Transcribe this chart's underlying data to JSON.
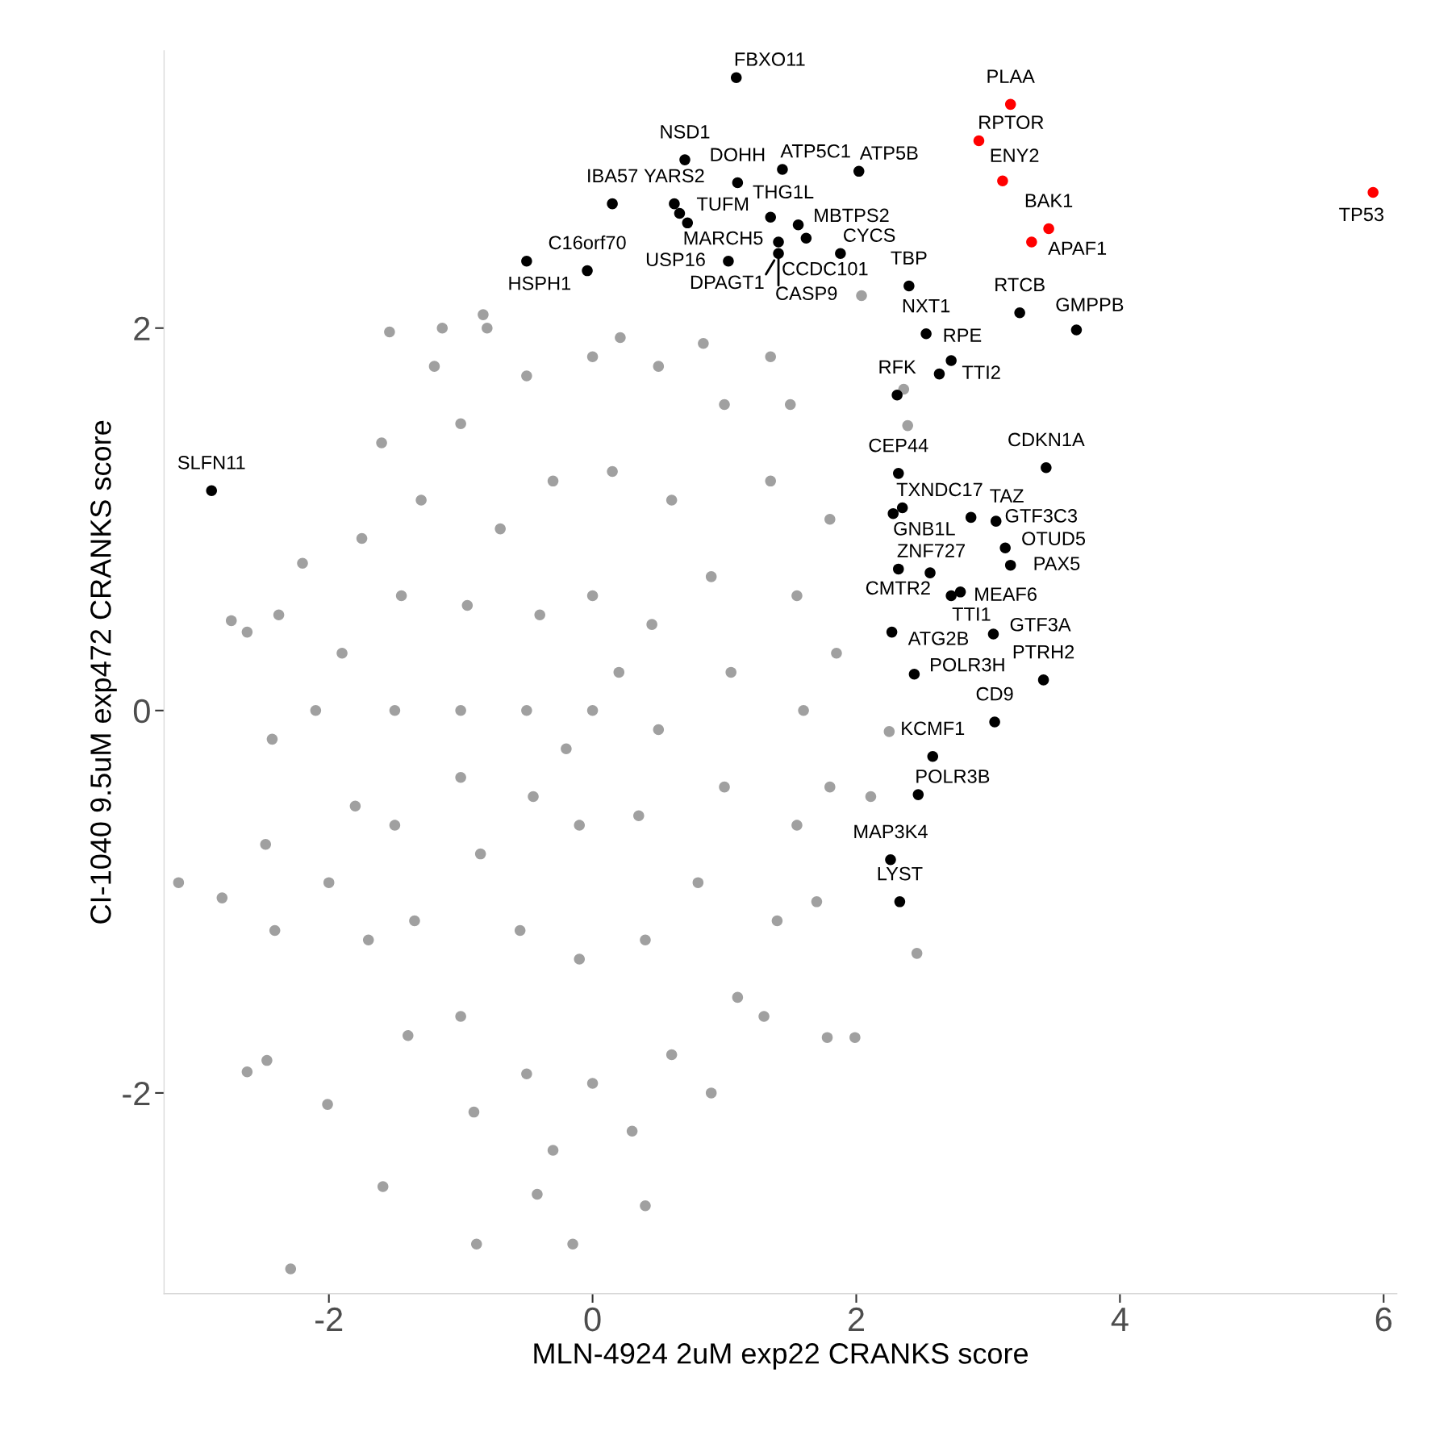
{
  "chart_data": {
    "type": "scatter",
    "xlabel": "MLN-4924 2uM exp22 CRANKS score",
    "ylabel": "CI-1040 9.5uM exp472 CRANKS score",
    "xlim": [
      -3.25,
      6.1
    ],
    "ylim": [
      -3.05,
      3.45
    ],
    "xticks": [
      -2,
      0,
      2,
      4,
      6
    ],
    "yticks": [
      -2,
      0,
      2
    ],
    "marker": "circle",
    "series": [
      {
        "color": "#a0a0a0",
        "x": [
          -3.14,
          -2.81,
          -2.29,
          -2.62,
          -2.47,
          -2.01,
          -1.59,
          -0.88,
          -0.15,
          0.4,
          -0.42,
          1.99,
          1.78,
          2.46,
          -2.74,
          -2.62,
          -2.2,
          -2.38,
          -1.54,
          -1.14,
          -0.83,
          0.21,
          0.84,
          1.35,
          2.36,
          2.04,
          2.39,
          2.25,
          2.11,
          -2.48,
          -2.43,
          -2.41,
          -1.5,
          -1.45,
          -1.3,
          -1.0,
          -0.5,
          0.0,
          0.5,
          1.0,
          1.35,
          1.55,
          1.6,
          1.55,
          1.4,
          1.1,
          0.6,
          0.0,
          -0.5,
          -1.0,
          -1.35,
          -1.5,
          -1.0,
          -0.95,
          -0.7,
          -0.3,
          0.15,
          0.6,
          0.9,
          1.05,
          1.0,
          0.8,
          0.4,
          -0.1,
          -0.55,
          -0.85,
          -1.0,
          -0.5,
          -0.4,
          0.0,
          0.45,
          0.5,
          0.35,
          -0.1,
          -0.45,
          0.0,
          0.2,
          -0.2,
          -1.9,
          -1.8,
          -1.75,
          -1.6,
          -1.2,
          -0.8,
          1.5,
          1.8,
          1.85,
          1.8,
          1.7,
          1.3,
          0.9,
          0.3,
          -0.3,
          -0.9,
          -1.4,
          -1.7,
          -2.0,
          -2.1
        ],
        "values": [
          -0.9,
          -0.98,
          -2.92,
          -1.89,
          -1.83,
          -2.06,
          -2.49,
          -2.79,
          -2.79,
          -2.59,
          -2.53,
          -1.71,
          -1.71,
          -1.27,
          0.47,
          0.41,
          0.77,
          0.5,
          1.98,
          2.0,
          2.07,
          1.95,
          1.92,
          1.85,
          1.68,
          2.17,
          1.49,
          -0.11,
          -0.45,
          -0.7,
          -0.15,
          -1.15,
          0.0,
          0.6,
          1.1,
          1.5,
          1.75,
          1.85,
          1.8,
          1.6,
          1.2,
          0.6,
          0.0,
          -0.6,
          -1.1,
          -1.5,
          -1.8,
          -1.95,
          -1.9,
          -1.6,
          -1.1,
          -0.6,
          0.0,
          0.55,
          0.95,
          1.2,
          1.25,
          1.1,
          0.7,
          0.2,
          -0.4,
          -0.9,
          -1.2,
          -1.3,
          -1.15,
          -0.75,
          -0.35,
          0.0,
          0.5,
          0.6,
          0.45,
          -0.1,
          -0.55,
          -0.6,
          -0.45,
          0.0,
          0.2,
          -0.2,
          0.3,
          -0.5,
          0.9,
          1.4,
          1.8,
          2.0,
          1.6,
          1.0,
          0.3,
          -0.4,
          -1.0,
          -1.6,
          -2.0,
          -2.2,
          -2.3,
          -2.1,
          -1.7,
          -1.2,
          -0.9,
          0.0
        ]
      },
      {
        "color": "#000000",
        "x": [
          1.09,
          0.7,
          1.1,
          1.44,
          2.02,
          0.15,
          0.62,
          0.66,
          0.72,
          1.35,
          1.56,
          1.62,
          1.41,
          1.41,
          1.03,
          1.88,
          -0.04,
          -0.5,
          2.4,
          2.53,
          2.72,
          2.63,
          2.31,
          3.24,
          3.67,
          -2.89,
          2.32,
          2.35,
          2.28,
          2.87,
          3.06,
          3.44,
          3.13,
          3.17,
          2.32,
          2.56,
          2.72,
          2.79,
          2.27,
          3.04,
          2.44,
          3.42,
          3.05,
          2.58,
          2.47,
          2.26,
          2.33
        ],
        "values": [
          3.31,
          2.88,
          2.76,
          2.83,
          2.82,
          2.65,
          2.65,
          2.6,
          2.55,
          2.58,
          2.54,
          2.47,
          2.45,
          2.39,
          2.35,
          2.39,
          2.3,
          2.35,
          2.22,
          1.97,
          1.83,
          1.76,
          1.65,
          2.08,
          1.99,
          1.15,
          1.24,
          1.06,
          1.03,
          1.01,
          0.99,
          1.27,
          0.85,
          0.76,
          0.74,
          0.72,
          0.6,
          0.62,
          0.41,
          0.4,
          0.19,
          0.16,
          -0.06,
          -0.24,
          -0.44,
          -0.78,
          -1.0
        ]
      },
      {
        "color": "#ff0000",
        "x": [
          3.17,
          2.93,
          3.11,
          3.46,
          3.33,
          5.92
        ],
        "values": [
          3.17,
          2.98,
          2.77,
          2.52,
          2.45,
          2.71
        ]
      }
    ],
    "annotations": [
      {
        "text": "FBXO11",
        "x": 1.09,
        "y": 3.31
      },
      {
        "text": "NSD1",
        "x": 0.7,
        "y": 2.88
      },
      {
        "text": "DOHH",
        "x": 1.1,
        "y": 2.76
      },
      {
        "text": "ATP5C1",
        "x": 1.44,
        "y": 2.83
      },
      {
        "text": "ATP5B",
        "x": 2.02,
        "y": 2.82
      },
      {
        "text": "IBA57",
        "x": 0.15,
        "y": 2.65
      },
      {
        "text": "YARS2",
        "x": 0.62,
        "y": 2.65
      },
      {
        "text": "TUFM",
        "x": 0.66,
        "y": 2.6
      },
      {
        "text": "MARCH5",
        "x": 0.72,
        "y": 2.55
      },
      {
        "text": "THG1L",
        "x": 1.35,
        "y": 2.58
      },
      {
        "text": "MBTPS2",
        "x": 1.56,
        "y": 2.54
      },
      {
        "text": "CCDC101",
        "x": 1.62,
        "y": 2.47
      },
      {
        "text": "CASP9",
        "x": 1.41,
        "y": 2.45
      },
      {
        "text": "DPAGT1",
        "x": 1.41,
        "y": 2.39
      },
      {
        "text": "USP16",
        "x": 1.03,
        "y": 2.35
      },
      {
        "text": "CYCS",
        "x": 1.88,
        "y": 2.39
      },
      {
        "text": "C16orf70",
        "x": -0.04,
        "y": 2.3
      },
      {
        "text": "HSPH1",
        "x": -0.5,
        "y": 2.35
      },
      {
        "text": "TBP",
        "x": 2.4,
        "y": 2.22
      },
      {
        "text": "NXT1",
        "x": 2.53,
        "y": 1.97
      },
      {
        "text": "RPE",
        "x": 2.72,
        "y": 1.83
      },
      {
        "text": "TTI2",
        "x": 2.63,
        "y": 1.76
      },
      {
        "text": "RFK",
        "x": 2.31,
        "y": 1.65
      },
      {
        "text": "RTCB",
        "x": 3.24,
        "y": 2.08
      },
      {
        "text": "GMPPB",
        "x": 3.67,
        "y": 1.99
      },
      {
        "text": "SLFN11",
        "x": -2.89,
        "y": 1.15
      },
      {
        "text": "CEP44",
        "x": 2.32,
        "y": 1.24
      },
      {
        "text": "TXNDC17",
        "x": 2.35,
        "y": 1.06
      },
      {
        "text": "GNB1L",
        "x": 2.28,
        "y": 1.03
      },
      {
        "text": "GTF3C3",
        "x": 2.87,
        "y": 1.01
      },
      {
        "text": "TAZ",
        "x": 3.06,
        "y": 0.99
      },
      {
        "text": "CDKN1A",
        "x": 3.44,
        "y": 1.27
      },
      {
        "text": "OTUD5",
        "x": 3.13,
        "y": 0.85
      },
      {
        "text": "PAX5",
        "x": 3.17,
        "y": 0.76
      },
      {
        "text": "ZNF727",
        "x": 2.32,
        "y": 0.74
      },
      {
        "text": "CMTR2",
        "x": 2.56,
        "y": 0.72
      },
      {
        "text": "MEAF6",
        "x": 2.72,
        "y": 0.6
      },
      {
        "text": "TTI1",
        "x": 2.79,
        "y": 0.62
      },
      {
        "text": "ATG2B",
        "x": 2.27,
        "y": 0.41
      },
      {
        "text": "GTF3A",
        "x": 3.04,
        "y": 0.4
      },
      {
        "text": "POLR3H",
        "x": 2.44,
        "y": 0.19
      },
      {
        "text": "PTRH2",
        "x": 3.42,
        "y": 0.16
      },
      {
        "text": "CD9",
        "x": 3.05,
        "y": -0.06
      },
      {
        "text": "KCMF1",
        "x": 2.58,
        "y": -0.24
      },
      {
        "text": "POLR3B",
        "x": 2.47,
        "y": -0.44
      },
      {
        "text": "MAP3K4",
        "x": 2.26,
        "y": -0.78
      },
      {
        "text": "LYST",
        "x": 2.33,
        "y": -1.0
      },
      {
        "text": "PLAA",
        "x": 3.17,
        "y": 3.17
      },
      {
        "text": "RPTOR",
        "x": 2.93,
        "y": 2.98
      },
      {
        "text": "ENY2",
        "x": 3.11,
        "y": 2.77
      },
      {
        "text": "BAK1",
        "x": 3.46,
        "y": 2.52
      },
      {
        "text": "APAF1",
        "x": 3.33,
        "y": 2.45
      },
      {
        "text": "TP53",
        "x": 5.92,
        "y": 2.71
      }
    ]
  }
}
